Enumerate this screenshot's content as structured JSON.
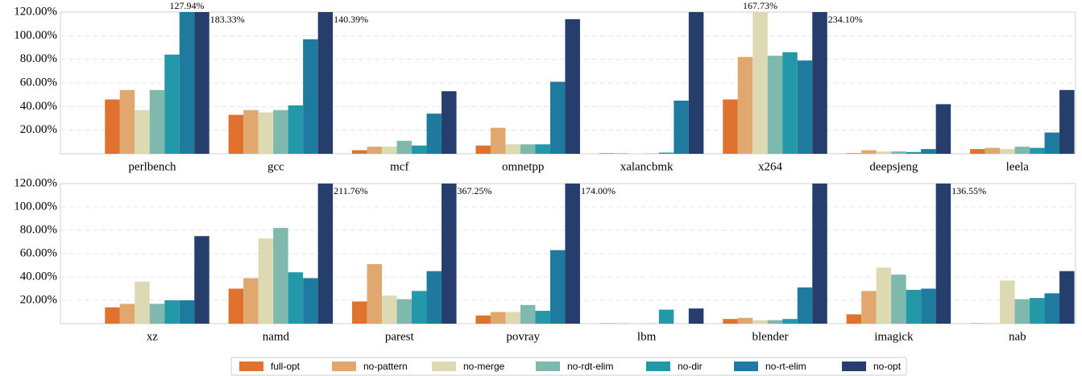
{
  "chart_data": [
    {
      "type": "bar",
      "categories": [
        "perlbench",
        "gcc",
        "mcf",
        "omnetpp",
        "xalancbmk",
        "x264",
        "deepsjeng",
        "leela"
      ],
      "ylim": [
        0,
        120
      ],
      "yticks": [
        {
          "value": 20,
          "label": "20.00%"
        },
        {
          "value": 40,
          "label": "40.00%"
        },
        {
          "value": 60,
          "label": "60.00%"
        },
        {
          "value": 80,
          "label": "80.00%"
        },
        {
          "value": 100,
          "label": "100.00%"
        },
        {
          "value": 120,
          "label": "120.00%"
        }
      ],
      "grid": true,
      "series": [
        {
          "name": "full-opt",
          "color": "#e07230",
          "values": [
            46,
            33,
            3,
            7,
            0.5,
            46,
            0.5,
            4
          ],
          "value_labels": [
            null,
            null,
            null,
            null,
            null,
            null,
            null,
            null
          ]
        },
        {
          "name": "no-pattern",
          "color": "#e0a86e",
          "values": [
            54,
            37,
            6,
            22,
            0.5,
            82,
            3,
            5
          ],
          "value_labels": [
            null,
            null,
            null,
            null,
            null,
            null,
            null,
            null
          ]
        },
        {
          "name": "no-merge",
          "color": "#ddd9b2",
          "values": [
            37,
            35,
            6,
            8,
            0.3,
            167.73,
            2,
            4
          ],
          "value_labels": [
            null,
            null,
            null,
            null,
            null,
            "167.73%",
            null,
            null
          ]
        },
        {
          "name": "no-rdt-elim",
          "color": "#7fb8ad",
          "values": [
            54,
            37,
            11,
            8,
            0.3,
            83,
            2,
            6
          ],
          "value_labels": [
            null,
            null,
            null,
            null,
            null,
            null,
            null,
            null
          ]
        },
        {
          "name": "no-dir",
          "color": "#2298a9",
          "values": [
            84,
            41,
            7,
            8,
            1,
            86,
            1.5,
            5
          ],
          "value_labels": [
            null,
            null,
            null,
            null,
            null,
            null,
            null,
            null
          ]
        },
        {
          "name": "no-rt-elim",
          "color": "#1f7aa0",
          "values": [
            127.94,
            97,
            34,
            61,
            45,
            79,
            4,
            18
          ],
          "value_labels": [
            "127.94%",
            null,
            null,
            null,
            null,
            null,
            null,
            null
          ]
        },
        {
          "name": "no-opt",
          "color": "#263e6b",
          "values": [
            183.33,
            140.39,
            53,
            114,
            120,
            234.1,
            42,
            54
          ],
          "value_labels": [
            "183.33%",
            "140.39%",
            null,
            null,
            null,
            "234.10%",
            null,
            null
          ]
        }
      ]
    },
    {
      "type": "bar",
      "categories": [
        "xz",
        "namd",
        "parest",
        "povray",
        "lbm",
        "blender",
        "imagick",
        "nab"
      ],
      "ylim": [
        0,
        120
      ],
      "yticks": [
        {
          "value": 20,
          "label": "20.00%"
        },
        {
          "value": 40,
          "label": "40.00%"
        },
        {
          "value": 60,
          "label": "60.00%"
        },
        {
          "value": 80,
          "label": "80.00%"
        },
        {
          "value": 100,
          "label": "100.00%"
        },
        {
          "value": 120,
          "label": "120.00%"
        }
      ],
      "grid": true,
      "series": [
        {
          "name": "full-opt",
          "color": "#e07230",
          "values": [
            14,
            30,
            19,
            7,
            0.3,
            4,
            8,
            0.3
          ],
          "value_labels": [
            null,
            null,
            null,
            null,
            null,
            null,
            null,
            null
          ]
        },
        {
          "name": "no-pattern",
          "color": "#e0a86e",
          "values": [
            17,
            39,
            51,
            10,
            0.3,
            5,
            28,
            0.3
          ],
          "value_labels": [
            null,
            null,
            null,
            null,
            null,
            null,
            null,
            null
          ]
        },
        {
          "name": "no-merge",
          "color": "#ddd9b2",
          "values": [
            36,
            73,
            24,
            10,
            0.2,
            3,
            48,
            37
          ],
          "value_labels": [
            null,
            null,
            null,
            null,
            null,
            null,
            null,
            null
          ]
        },
        {
          "name": "no-rdt-elim",
          "color": "#7fb8ad",
          "values": [
            17,
            82,
            21,
            16,
            0.2,
            3,
            42,
            21
          ],
          "value_labels": [
            null,
            null,
            null,
            null,
            null,
            null,
            null,
            null
          ]
        },
        {
          "name": "no-dir",
          "color": "#2298a9",
          "values": [
            20,
            44,
            28,
            11,
            12,
            4,
            29,
            22
          ],
          "value_labels": [
            null,
            null,
            null,
            null,
            null,
            null,
            null,
            null
          ]
        },
        {
          "name": "no-rt-elim",
          "color": "#1f7aa0",
          "values": [
            20,
            39,
            45,
            63,
            0,
            31,
            30,
            26
          ],
          "value_labels": [
            null,
            null,
            null,
            null,
            null,
            null,
            null,
            null
          ]
        },
        {
          "name": "no-opt",
          "color": "#263e6b",
          "values": [
            75,
            211.76,
            367.25,
            174,
            13,
            120,
            136.55,
            45
          ],
          "value_labels": [
            null,
            "211.76%",
            "367.25%",
            "174.00%",
            null,
            null,
            "136.55%",
            null
          ]
        }
      ]
    }
  ]
}
